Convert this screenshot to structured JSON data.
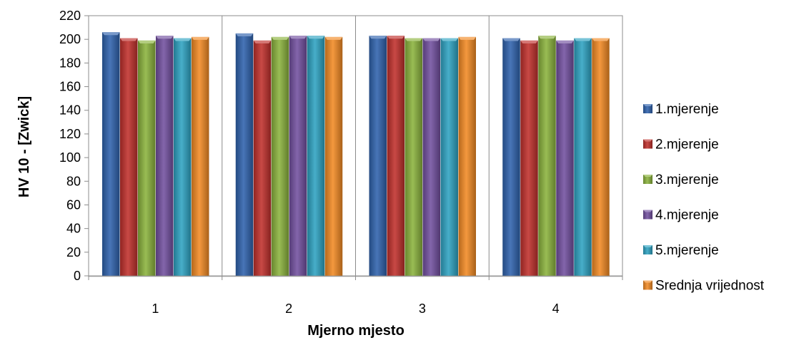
{
  "chart_data": {
    "type": "bar",
    "categories": [
      "1",
      "2",
      "3",
      "4"
    ],
    "xlabel": "Mjerno mjesto",
    "ylabel": "HV 10 - [Zwick]",
    "ylim": [
      0,
      220
    ],
    "yticks": [
      0,
      20,
      40,
      60,
      80,
      100,
      120,
      140,
      160,
      180,
      200,
      220
    ],
    "grid": false,
    "legend_position": "right",
    "series": [
      {
        "name": "1.mjerenje",
        "color": "#2f62ad",
        "values": [
          206,
          205,
          203,
          201
        ]
      },
      {
        "name": "2.mjerenje",
        "color": "#c0302c",
        "values": [
          201,
          199,
          203,
          199
        ]
      },
      {
        "name": "3.mjerenje",
        "color": "#8bb33d",
        "values": [
          199,
          202,
          201,
          203
        ]
      },
      {
        "name": "4.mjerenje",
        "color": "#7250a0",
        "values": [
          203,
          203,
          201,
          199
        ]
      },
      {
        "name": "5.mjerenje",
        "color": "#2ea3c2",
        "values": [
          201,
          203,
          201,
          201
        ]
      },
      {
        "name": "Srednja vrijednost",
        "color": "#f28a24",
        "values": [
          202,
          202,
          202,
          201
        ]
      }
    ]
  }
}
